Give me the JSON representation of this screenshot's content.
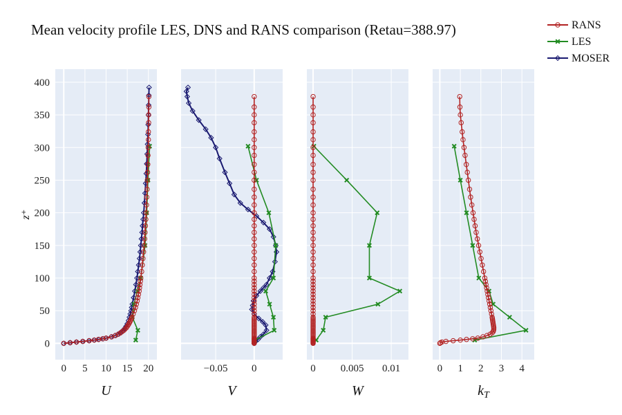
{
  "chart_data": {
    "type": "line",
    "title": "Mean velocity profile LES, DNS and RANS comparison (Retau=388.97)",
    "ylabel": "z⁺",
    "ylim": [
      -25,
      420
    ],
    "yticks": [
      0,
      50,
      100,
      150,
      200,
      250,
      300,
      350,
      400
    ],
    "grid": true,
    "legend_position": "top-right",
    "legend": [
      {
        "name": "RANS",
        "color": "#b22222",
        "marker": "circle"
      },
      {
        "name": "LES",
        "color": "#228b22",
        "marker": "x"
      },
      {
        "name": "MOSER",
        "color": "#191970",
        "marker": "diamond"
      }
    ],
    "z": {
      "rans": [
        0,
        1,
        2,
        3,
        4,
        5,
        6,
        7,
        8,
        10,
        12,
        14,
        16,
        18,
        20,
        22,
        24,
        26,
        28,
        30,
        32,
        34,
        36,
        38,
        40,
        45,
        50,
        55,
        60,
        65,
        70,
        75,
        80,
        85,
        90,
        95,
        100,
        110,
        120,
        130,
        140,
        150,
        160,
        170,
        180,
        190,
        200,
        212,
        224,
        236,
        250,
        262,
        274,
        288,
        300,
        312,
        324,
        338,
        350,
        362,
        378
      ],
      "les": [
        5,
        20,
        40,
        60,
        80,
        100,
        150,
        200,
        250,
        302
      ],
      "moser": [
        0,
        1,
        2,
        3,
        4,
        5,
        6,
        7,
        8,
        10,
        12,
        14,
        16,
        18,
        20,
        23,
        26,
        30,
        35,
        40,
        45,
        50,
        55,
        60,
        70,
        80,
        90,
        100,
        110,
        120,
        130,
        140,
        150,
        160,
        170,
        180,
        190,
        200,
        215,
        230,
        245,
        260,
        275,
        290,
        305,
        320,
        335,
        350,
        365,
        380,
        392
      ]
    },
    "panels": [
      {
        "xlabel": "U",
        "xlim": [
          -2,
          22
        ],
        "xticks": [
          {
            "v": 0,
            "label": "0"
          },
          {
            "v": 5,
            "label": "5"
          },
          {
            "v": 10,
            "label": "10"
          },
          {
            "v": 15,
            "label": "15"
          },
          {
            "v": 20,
            "label": "20"
          }
        ],
        "rans": [
          0.0,
          1.5,
          3.0,
          4.5,
          6.0,
          7.2,
          8.2,
          9.2,
          10.0,
          11.3,
          12.2,
          12.9,
          13.4,
          13.8,
          14.2,
          14.5,
          14.8,
          15.0,
          15.2,
          15.4,
          15.55,
          15.7,
          15.85,
          16.0,
          16.1,
          16.4,
          16.7,
          16.95,
          17.15,
          17.35,
          17.5,
          17.65,
          17.8,
          17.9,
          18.0,
          18.1,
          18.2,
          18.4,
          18.55,
          18.7,
          18.85,
          19.0,
          19.1,
          19.2,
          19.3,
          19.4,
          19.45,
          19.55,
          19.6,
          19.7,
          19.75,
          19.8,
          19.85,
          19.9,
          19.95,
          20.0,
          20.0,
          20.05,
          20.05,
          20.1,
          20.1
        ],
        "les": [
          17.0,
          17.5,
          16.2,
          16.6,
          17.4,
          18.2,
          19.2,
          19.6,
          19.9,
          20.3
        ],
        "moser": [
          0.0,
          1.5,
          3.0,
          4.5,
          6.0,
          7.2,
          8.3,
          9.3,
          10.0,
          11.2,
          12.1,
          12.8,
          13.3,
          13.7,
          14.0,
          14.4,
          14.7,
          15.0,
          15.3,
          15.5,
          15.7,
          15.9,
          16.05,
          16.2,
          16.5,
          16.8,
          17.05,
          17.3,
          17.5,
          17.7,
          17.9,
          18.05,
          18.2,
          18.35,
          18.5,
          18.6,
          18.75,
          18.9,
          19.05,
          19.2,
          19.35,
          19.5,
          19.6,
          19.7,
          19.8,
          19.9,
          19.95,
          20.0,
          20.05,
          20.1,
          20.15
        ]
      },
      {
        "xlabel": "V",
        "xlim": [
          -0.095,
          0.037
        ],
        "xticks": [
          {
            "v": -0.05,
            "label": "−0.05"
          },
          {
            "v": 0,
            "label": "0"
          }
        ],
        "les": [
          0.001,
          0.026,
          0.025,
          0.02,
          0.015,
          0.025,
          0.028,
          0.019,
          0.003,
          -0.008
        ],
        "moser_pairs": [
          [
            0,
            0
          ],
          [
            0.002,
            3
          ],
          [
            0.005,
            6
          ],
          [
            0.008,
            10
          ],
          [
            0.012,
            14
          ],
          [
            0.016,
            20
          ],
          [
            0.015,
            28
          ],
          [
            0.011,
            33
          ],
          [
            0.006,
            38
          ],
          [
            0.0,
            45
          ],
          [
            -0.003,
            52
          ],
          [
            -0.002,
            58
          ],
          [
            -0.001,
            65
          ],
          [
            0.003,
            73
          ],
          [
            0.008,
            80
          ],
          [
            0.012,
            85
          ],
          [
            0.016,
            90
          ],
          [
            0.02,
            100
          ],
          [
            0.024,
            110
          ],
          [
            0.027,
            125
          ],
          [
            0.029,
            140
          ],
          [
            0.028,
            150
          ],
          [
            0.025,
            163
          ],
          [
            0.02,
            175
          ],
          [
            0.012,
            185
          ],
          [
            0.003,
            195
          ],
          [
            -0.008,
            205
          ],
          [
            -0.018,
            215
          ],
          [
            -0.026,
            228
          ],
          [
            -0.032,
            245
          ],
          [
            -0.038,
            262
          ],
          [
            -0.045,
            283
          ],
          [
            -0.05,
            300
          ],
          [
            -0.056,
            315
          ],
          [
            -0.063,
            328
          ],
          [
            -0.072,
            342
          ],
          [
            -0.08,
            356
          ],
          [
            -0.085,
            368
          ],
          [
            -0.087,
            378
          ],
          [
            -0.088,
            386
          ],
          [
            -0.086,
            392
          ]
        ]
      },
      {
        "xlabel": "W",
        "xlim": [
          -0.0008,
          0.0122
        ],
        "xticks": [
          {
            "v": 0,
            "label": "0"
          },
          {
            "v": 0.005,
            "label": "0.005"
          },
          {
            "v": 0.01,
            "label": "0.01"
          }
        ],
        "les": [
          0.0004,
          0.0013,
          0.0016,
          0.0083,
          0.0111,
          0.0072,
          0.0072,
          0.0082,
          0.0043,
          0.0001
        ]
      },
      {
        "xlabel": "kT",
        "xlim": [
          -0.35,
          4.6
        ],
        "xticks": [
          {
            "v": 0,
            "label": "0"
          },
          {
            "v": 1,
            "label": "1"
          },
          {
            "v": 2,
            "label": "2"
          },
          {
            "v": 3,
            "label": "3"
          },
          {
            "v": 4,
            "label": "4"
          }
        ],
        "rans": [
          0.0,
          0.03,
          0.1,
          0.3,
          0.65,
          1.0,
          1.3,
          1.6,
          1.85,
          2.1,
          2.3,
          2.45,
          2.55,
          2.6,
          2.62,
          2.63,
          2.63,
          2.62,
          2.61,
          2.6,
          2.59,
          2.58,
          2.57,
          2.56,
          2.55,
          2.52,
          2.49,
          2.46,
          2.43,
          2.4,
          2.37,
          2.34,
          2.31,
          2.28,
          2.25,
          2.22,
          2.19,
          2.13,
          2.07,
          2.01,
          1.95,
          1.89,
          1.83,
          1.77,
          1.72,
          1.67,
          1.62,
          1.56,
          1.5,
          1.45,
          1.39,
          1.34,
          1.29,
          1.23,
          1.18,
          1.13,
          1.09,
          1.04,
          1.0,
          0.98,
          0.97
        ],
        "les": [
          1.7,
          4.2,
          3.4,
          2.6,
          2.4,
          1.9,
          1.6,
          1.3,
          1.0,
          0.7
        ]
      }
    ]
  }
}
